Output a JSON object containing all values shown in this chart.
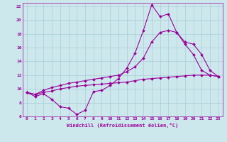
{
  "xlabel": "Windchill (Refroidissement éolien,°C)",
  "background_color": "#cde8ed",
  "grid_color": "#a8cdd5",
  "line_color": "#990099",
  "xlim": [
    -0.5,
    23.5
  ],
  "ylim": [
    6,
    22.5
  ],
  "xticks": [
    0,
    1,
    2,
    3,
    4,
    5,
    6,
    7,
    8,
    9,
    10,
    11,
    12,
    13,
    14,
    15,
    16,
    17,
    18,
    19,
    20,
    21,
    22,
    23
  ],
  "yticks": [
    6,
    8,
    10,
    12,
    14,
    16,
    18,
    20,
    22
  ],
  "series1_x": [
    0,
    1,
    2,
    3,
    4,
    5,
    6,
    7,
    8,
    9,
    10,
    11,
    12,
    13,
    14,
    15,
    16,
    17,
    18,
    19,
    20,
    21,
    22,
    23
  ],
  "series1_y": [
    9.5,
    8.9,
    9.3,
    8.5,
    7.4,
    7.2,
    6.3,
    6.9,
    9.6,
    9.8,
    10.5,
    11.5,
    13.0,
    15.2,
    18.5,
    22.2,
    20.5,
    20.9,
    18.2,
    16.5,
    15.0,
    12.7,
    12.0,
    11.8
  ],
  "series2_x": [
    0,
    1,
    2,
    3,
    4,
    5,
    6,
    7,
    8,
    9,
    10,
    11,
    12,
    13,
    14,
    15,
    16,
    17,
    18,
    19,
    20,
    21,
    22,
    23
  ],
  "series2_y": [
    9.5,
    9.2,
    9.8,
    10.2,
    10.5,
    10.8,
    11.0,
    11.2,
    11.4,
    11.6,
    11.8,
    12.0,
    12.5,
    13.2,
    14.5,
    16.8,
    18.2,
    18.5,
    18.2,
    16.8,
    16.5,
    15.0,
    12.7,
    11.8
  ],
  "series3_x": [
    0,
    1,
    2,
    3,
    4,
    5,
    6,
    7,
    8,
    9,
    10,
    11,
    12,
    13,
    14,
    15,
    16,
    17,
    18,
    19,
    20,
    21,
    22,
    23
  ],
  "series3_y": [
    9.5,
    9.2,
    9.5,
    9.7,
    10.0,
    10.2,
    10.4,
    10.5,
    10.6,
    10.7,
    10.8,
    10.9,
    11.0,
    11.2,
    11.4,
    11.5,
    11.6,
    11.7,
    11.8,
    11.9,
    12.0,
    12.0,
    12.0,
    11.8
  ]
}
